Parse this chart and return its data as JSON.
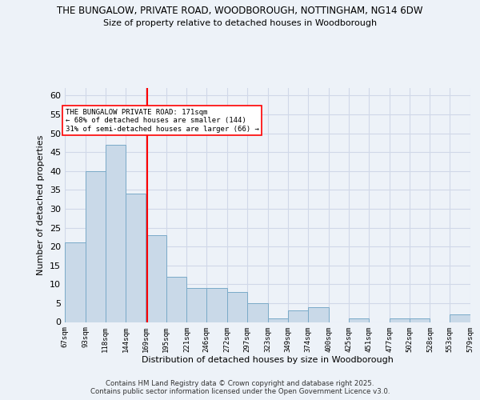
{
  "title_line1": "THE BUNGALOW, PRIVATE ROAD, WOODBOROUGH, NOTTINGHAM, NG14 6DW",
  "title_line2": "Size of property relative to detached houses in Woodborough",
  "xlabel": "Distribution of detached houses by size in Woodborough",
  "ylabel": "Number of detached properties",
  "bar_edges": [
    67,
    93,
    118,
    144,
    169,
    195,
    221,
    246,
    272,
    297,
    323,
    349,
    374,
    400,
    425,
    451,
    477,
    502,
    528,
    553,
    579
  ],
  "bar_heights": [
    21,
    40,
    47,
    34,
    23,
    12,
    9,
    9,
    8,
    5,
    1,
    3,
    4,
    0,
    1,
    0,
    1,
    1,
    0,
    2
  ],
  "bar_color": "#c9d9e8",
  "bar_edgecolor": "#7aaac8",
  "grid_color": "#d0d8e8",
  "property_line_x": 171,
  "property_line_color": "red",
  "annotation_text": "THE BUNGALOW PRIVATE ROAD: 171sqm\n← 68% of detached houses are smaller (144)\n31% of semi-detached houses are larger (66) →",
  "annotation_box_color": "white",
  "annotation_box_edgecolor": "red",
  "ylim": [
    0,
    62
  ],
  "yticks": [
    0,
    5,
    10,
    15,
    20,
    25,
    30,
    35,
    40,
    45,
    50,
    55,
    60
  ],
  "footer_line1": "Contains HM Land Registry data © Crown copyright and database right 2025.",
  "footer_line2": "Contains public sector information licensed under the Open Government Licence v3.0.",
  "bg_color": "#edf2f8"
}
